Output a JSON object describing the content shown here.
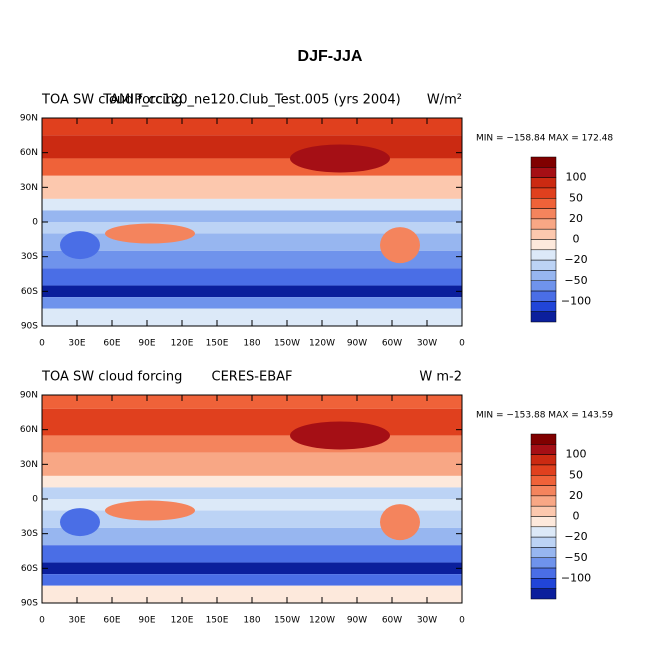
{
  "title": "DJF-JJA",
  "panels": [
    {
      "left_title": "TOA SW cloud forcing",
      "center_title": "TAMIP_cc120_ne120.Club_Test.005 (yrs 2004)",
      "units": "W/m²",
      "min_max": "MIN = −158.84  MAX = 172.48"
    },
    {
      "left_title": "TOA SW cloud forcing",
      "center_title": "CERES-EBAF",
      "units": "W m-2",
      "min_max": "MIN = −153.88  MAX = 143.59"
    }
  ],
  "lat_ticks": [
    "90N",
    "60N",
    "30N",
    "0",
    "30S",
    "60S",
    "90S"
  ],
  "lon_ticks": [
    "0",
    "30E",
    "60E",
    "90E",
    "120E",
    "150E",
    "180",
    "150W",
    "120W",
    "90W",
    "60W",
    "30W",
    "0"
  ],
  "colorbar": {
    "labels": [
      "100",
      "50",
      "20",
      "0",
      "−20",
      "−50",
      "−100"
    ],
    "colors": [
      "#800000",
      "#a50f15",
      "#cb2a12",
      "#e0401e",
      "#ef6239",
      "#f4845d",
      "#f8a785",
      "#fcc8ae",
      "#fde9dc",
      "#dce9f8",
      "#bcd3f5",
      "#97b6f0",
      "#6f93ec",
      "#4a6ee6",
      "#2145d8",
      "#0b1f9c"
    ]
  }
}
